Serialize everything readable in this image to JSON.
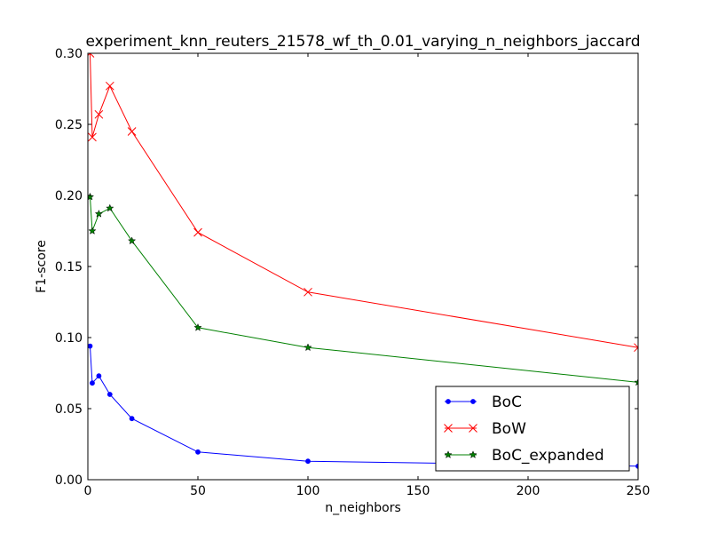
{
  "chart_data": {
    "type": "line",
    "title": "experiment_knn_reuters_21578_wf_th_0.01_varying_n_neighbors_jaccard",
    "xlabel": "n_neighbors",
    "ylabel": "F1-score",
    "xlim": [
      0,
      250
    ],
    "ylim": [
      0,
      0.3
    ],
    "x_ticks": [
      "0",
      "50",
      "100",
      "150",
      "200",
      "250"
    ],
    "y_ticks": [
      "0.00",
      "0.05",
      "0.10",
      "0.15",
      "0.20",
      "0.25",
      "0.30"
    ],
    "x": [
      1,
      2,
      5,
      10,
      20,
      50,
      100,
      250
    ],
    "series": [
      {
        "name": "BoC",
        "color": "#0000ff",
        "marker": "dot",
        "values": [
          0.094,
          0.068,
          0.073,
          0.06,
          0.043,
          0.0195,
          0.013,
          0.0095
        ]
      },
      {
        "name": "BoW",
        "color": "#ff0000",
        "marker": "x",
        "values": [
          0.3,
          0.241,
          0.257,
          0.277,
          0.245,
          0.174,
          0.132,
          0.093
        ]
      },
      {
        "name": "BoC_expanded",
        "color": "#008000",
        "marker": "star",
        "values": [
          0.199,
          0.175,
          0.187,
          0.191,
          0.168,
          0.107,
          0.093,
          0.0685
        ]
      }
    ],
    "legend": "lower-right",
    "grid": false
  }
}
